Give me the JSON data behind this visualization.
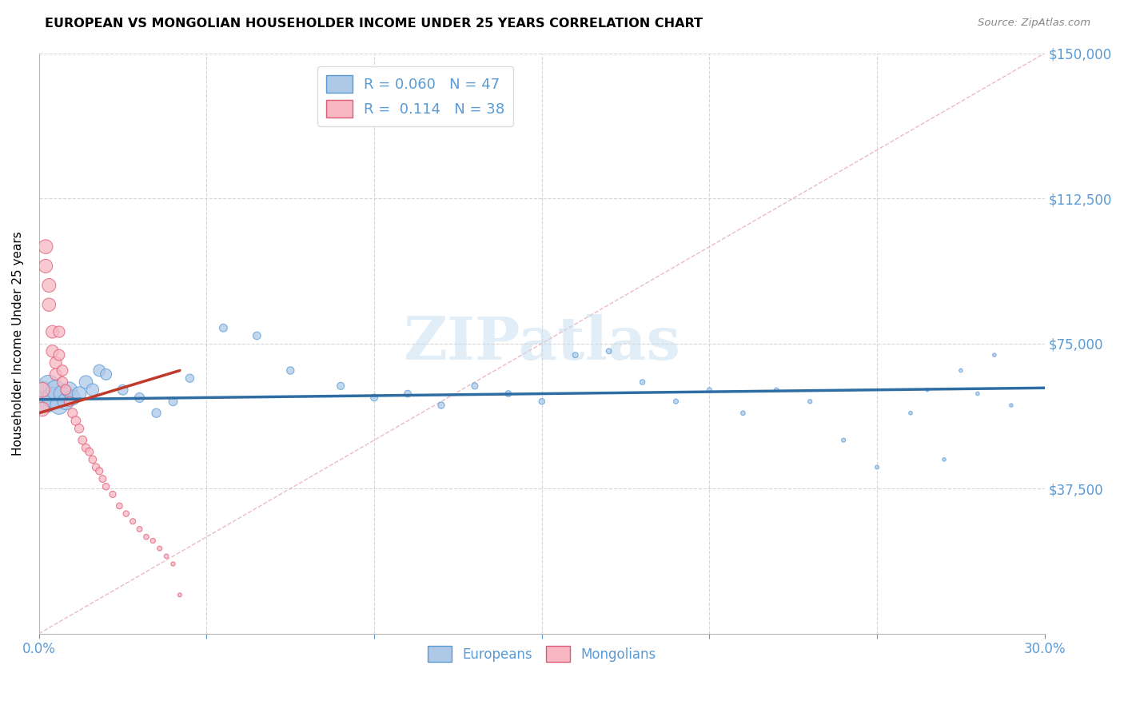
{
  "title": "EUROPEAN VS MONGOLIAN HOUSEHOLDER INCOME UNDER 25 YEARS CORRELATION CHART",
  "source": "Source: ZipAtlas.com",
  "tick_color": "#5b9bd5",
  "ylabel": "Householder Income Under 25 years",
  "xlim": [
    0.0,
    0.3
  ],
  "ylim": [
    0,
    150000
  ],
  "yticks": [
    0,
    37500,
    75000,
    112500,
    150000
  ],
  "ytick_labels": [
    "",
    "$37,500",
    "$75,000",
    "$112,500",
    "$150,000"
  ],
  "xticks": [
    0.0,
    0.05,
    0.1,
    0.15,
    0.2,
    0.25,
    0.3
  ],
  "xtick_labels": [
    "0.0%",
    "",
    "",
    "",
    "",
    "",
    "30.0%"
  ],
  "background_color": "#ffffff",
  "grid_color": "#cccccc",
  "europeans_fill_color": "#aec9e8",
  "europeans_edge_color": "#5b9bd5",
  "mongolians_fill_color": "#f7b8c4",
  "mongolians_edge_color": "#e05c75",
  "europeans_line_color": "#2e6da4",
  "mongolians_line_color": "#c0392b",
  "diagonal_color": "#e8b4be",
  "R_european": 0.06,
  "N_european": 47,
  "R_mongolian": 0.114,
  "N_mongolian": 38,
  "legend_labels": [
    "Europeans",
    "Mongolians"
  ],
  "watermark": "ZIPatlas",
  "europeans_x": [
    0.001,
    0.002,
    0.003,
    0.004,
    0.005,
    0.006,
    0.007,
    0.008,
    0.009,
    0.01,
    0.012,
    0.014,
    0.016,
    0.018,
    0.02,
    0.025,
    0.03,
    0.035,
    0.04,
    0.045,
    0.055,
    0.065,
    0.075,
    0.09,
    0.1,
    0.11,
    0.12,
    0.13,
    0.14,
    0.15,
    0.16,
    0.17,
    0.18,
    0.19,
    0.2,
    0.21,
    0.22,
    0.23,
    0.24,
    0.25,
    0.26,
    0.265,
    0.27,
    0.275,
    0.28,
    0.285,
    0.29
  ],
  "europeans_y": [
    62000,
    60000,
    64000,
    61000,
    63000,
    59000,
    62000,
    60000,
    63000,
    61000,
    62000,
    65000,
    63000,
    68000,
    67000,
    63000,
    61000,
    57000,
    60000,
    66000,
    79000,
    77000,
    68000,
    64000,
    61000,
    62000,
    59000,
    64000,
    62000,
    60000,
    72000,
    73000,
    65000,
    60000,
    63000,
    57000,
    63000,
    60000,
    50000,
    43000,
    57000,
    63000,
    45000,
    68000,
    62000,
    72000,
    59000
  ],
  "europeans_sizes": [
    500,
    420,
    380,
    340,
    300,
    260,
    240,
    220,
    200,
    185,
    160,
    140,
    125,
    110,
    100,
    85,
    75,
    65,
    60,
    55,
    50,
    48,
    45,
    42,
    40,
    38,
    35,
    33,
    30,
    28,
    25,
    23,
    21,
    19,
    17,
    16,
    15,
    14,
    13,
    12,
    11,
    10,
    10,
    10,
    10,
    10,
    10
  ],
  "mongolians_x": [
    0.001,
    0.001,
    0.002,
    0.002,
    0.003,
    0.003,
    0.004,
    0.004,
    0.005,
    0.005,
    0.006,
    0.006,
    0.007,
    0.007,
    0.008,
    0.009,
    0.01,
    0.011,
    0.012,
    0.013,
    0.014,
    0.015,
    0.016,
    0.017,
    0.018,
    0.019,
    0.02,
    0.022,
    0.024,
    0.026,
    0.028,
    0.03,
    0.032,
    0.034,
    0.036,
    0.038,
    0.04,
    0.042
  ],
  "mongolians_y": [
    63000,
    58000,
    100000,
    95000,
    90000,
    85000,
    78000,
    73000,
    70000,
    67000,
    78000,
    72000,
    68000,
    65000,
    63000,
    60000,
    57000,
    55000,
    53000,
    50000,
    48000,
    47000,
    45000,
    43000,
    42000,
    40000,
    38000,
    36000,
    33000,
    31000,
    29000,
    27000,
    25000,
    24000,
    22000,
    20000,
    18000,
    10000
  ],
  "mongolians_sizes": [
    180,
    160,
    160,
    150,
    150,
    140,
    130,
    120,
    115,
    110,
    105,
    100,
    95,
    90,
    85,
    80,
    75,
    70,
    65,
    60,
    55,
    52,
    48,
    45,
    42,
    40,
    37,
    34,
    31,
    28,
    26,
    24,
    22,
    20,
    18,
    16,
    14,
    12
  ],
  "eu_trend_x": [
    0.0,
    0.3
  ],
  "eu_trend_y": [
    60500,
    63500
  ],
  "mo_trend_x": [
    0.0,
    0.042
  ],
  "mo_trend_y": [
    57000,
    68000
  ]
}
